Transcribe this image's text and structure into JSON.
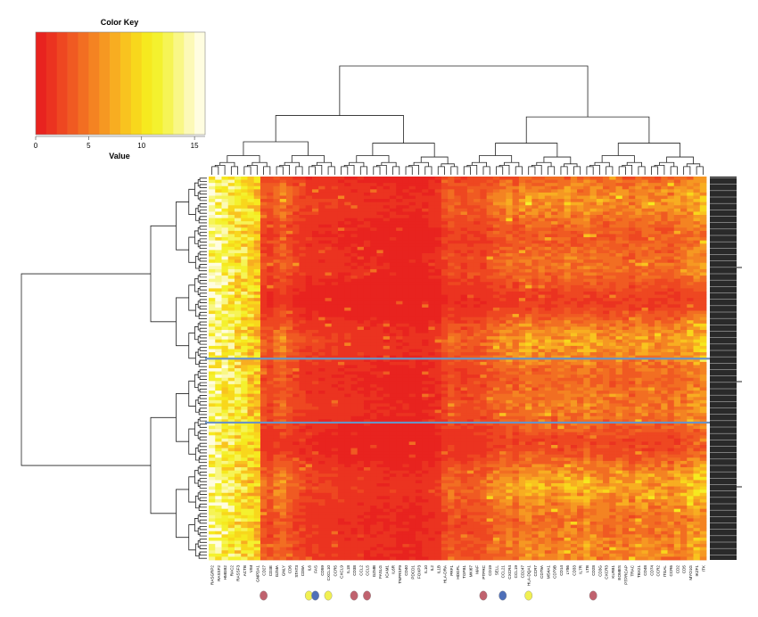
{
  "chart_data": {
    "type": "heatmap",
    "title": "",
    "color_key": {
      "title": "Color Key",
      "xlabel": "Value",
      "ticks": [
        0,
        5,
        10,
        15
      ],
      "range": [
        0,
        16
      ],
      "palette": [
        "#e8231f",
        "#eb3320",
        "#ee4721",
        "#f05a22",
        "#f26e22",
        "#f48322",
        "#f69822",
        "#f8ad21",
        "#f9c31f",
        "#f8d71c",
        "#f6e91f",
        "#f4f12e",
        "#f6f455",
        "#f9f786",
        "#fcf9b7",
        "#fffde0"
      ]
    },
    "columns": [
      "RASGRP2",
      "RASSF2",
      "HMGB2",
      "RAC2",
      "RASSF3",
      "ACTB",
      "VIM",
      "GNPDA1",
      "CD27",
      "CD3E",
      "GZMA",
      "GNLY",
      "CD6",
      "STAT3",
      "CD8A",
      "IL6",
      "FAS",
      "CD59",
      "CXCL10",
      "CCR5",
      "CXCL9",
      "IL18",
      "CD38",
      "CCL2",
      "CCL5",
      "GZMB",
      "FASLG",
      "ICAM1",
      "IL6R",
      "TNFRSF9",
      "CD40",
      "PDCD1",
      "FOXP3",
      "IL10",
      "IL2",
      "IL1B",
      "HLA-DRA",
      "PRF1",
      "HDGFL",
      "TGFB1",
      "MKI67",
      "MAF",
      "PTPRC",
      "CD19",
      "SELL",
      "CCL21",
      "CXCR4",
      "CCL19",
      "CD247",
      "HLA-DQA1",
      "CCR7",
      "CD79A",
      "MS4A1",
      "CD79B",
      "CD14",
      "LY86",
      "CD33",
      "IL7R",
      "LTB",
      "CD28",
      "CD3G",
      "CXCR3",
      "KLRB1",
      "EOMES",
      "PTPRCAP",
      "TRAC",
      "TBX21",
      "CD48",
      "CD74",
      "CCR2",
      "ITGAL",
      "CCR6",
      "CD2",
      "CD5",
      "MYO1G",
      "IKZF1",
      "ITK"
    ],
    "column_markers": [
      {
        "column": "CD27",
        "color": "#c0626e"
      },
      {
        "column": "IL6",
        "color": "#f1f052"
      },
      {
        "column": "FAS",
        "color": "#4e6fb8"
      },
      {
        "column": "CXCL10",
        "color": "#f1f052"
      },
      {
        "column": "CD38",
        "color": "#c0626e"
      },
      {
        "column": "CCL5",
        "color": "#c0626e"
      },
      {
        "column": "PTPRC",
        "color": "#c0626e"
      },
      {
        "column": "CCL21",
        "color": "#4e6fb8"
      },
      {
        "column": "HLA-DQA1",
        "color": "#f1f052"
      },
      {
        "column": "CD28",
        "color": "#c0626e"
      }
    ],
    "column_dendrogram": true,
    "row_dendrogram": true,
    "row_count": 120,
    "highlighted_row_band": {
      "first_row": 57,
      "last_row": 77,
      "color": "#6b93c4"
    },
    "column_means": [
      13.6,
      12.8,
      12.2,
      11.5,
      10.7,
      10.2,
      9.5,
      8.8,
      3.2,
      2.6,
      3.6,
      4.3,
      3.2,
      2.4,
      2.0,
      1.6,
      1.8,
      1.5,
      1.5,
      1.6,
      1.3,
      1.3,
      1.2,
      1.2,
      1.1,
      1.1,
      1.0,
      1.0,
      1.0,
      0.9,
      0.9,
      0.9,
      0.9,
      1.0,
      1.1,
      1.4,
      2.5,
      3.3,
      2.8,
      2.6,
      2.8,
      3.0,
      2.9,
      3.7,
      4.1,
      4.4,
      4.9,
      4.3,
      5.1,
      5.6,
      4.9,
      5.4,
      5.1,
      4.7,
      5.1,
      5.6,
      5.3,
      5.1,
      5.9,
      5.4,
      5.1,
      4.8,
      4.6,
      5.4,
      4.8,
      4.4,
      5.4,
      5.2,
      4.9,
      4.8,
      5.0,
      4.7,
      5.2,
      5.5,
      6.2,
      6.6,
      6.9
    ]
  }
}
